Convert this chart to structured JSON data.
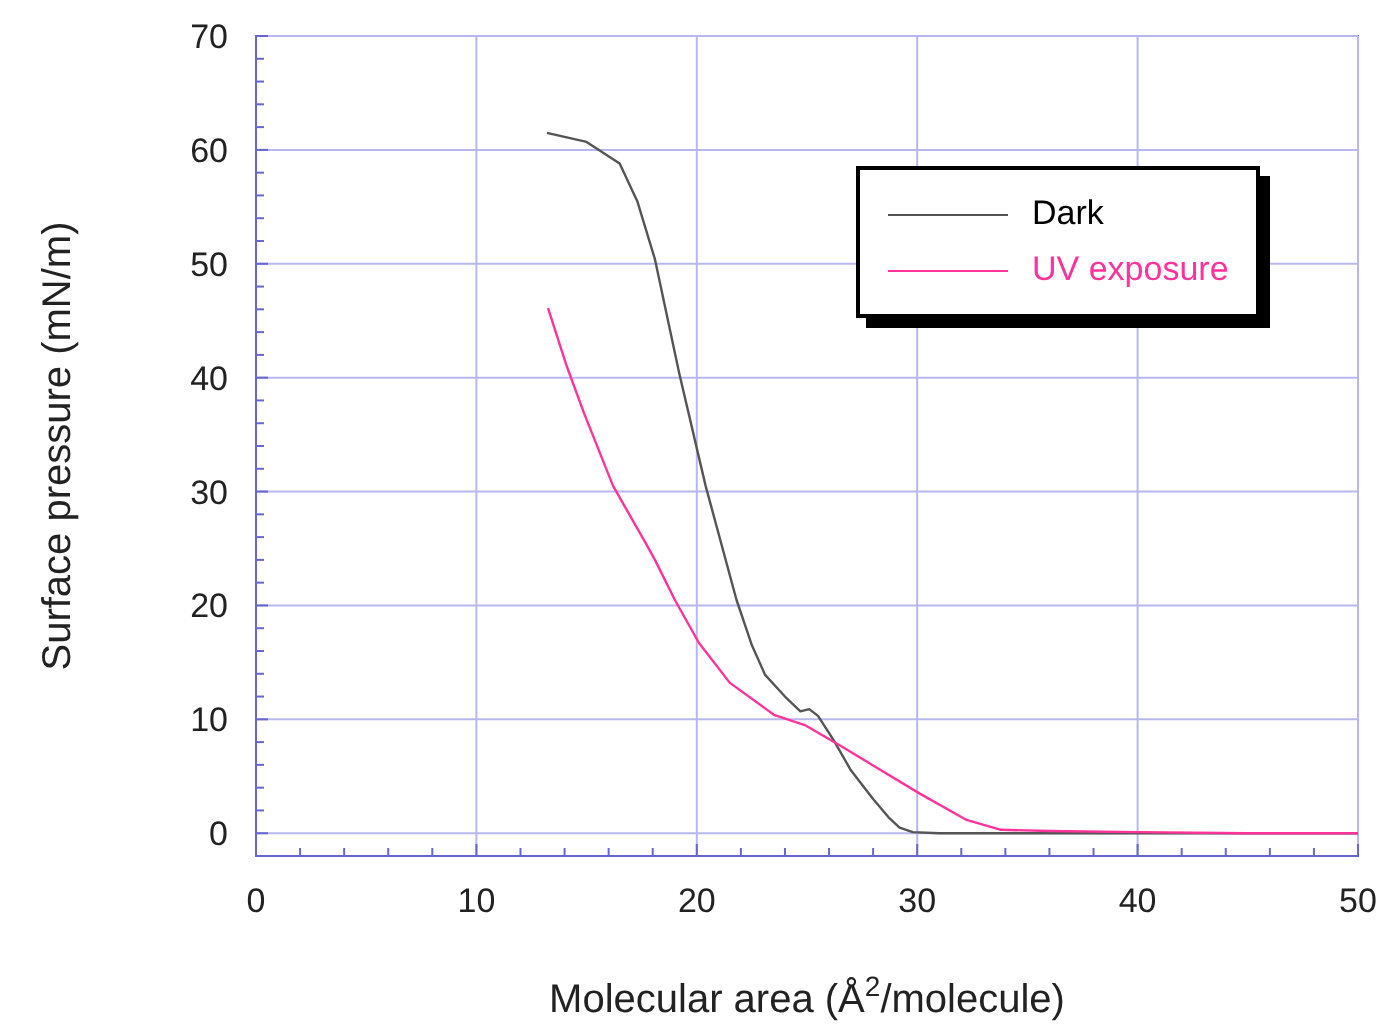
{
  "chart_data": {
    "type": "line",
    "xlabel": "Molecular area (Å$^{2}$/molecule)",
    "ylabel": "Surface pressure (mN/m)",
    "xlim": [
      0,
      50
    ],
    "ylim": [
      -2,
      70
    ],
    "xticks": [
      0,
      {
        "value": 2,
        "label": null
      },
      {
        "value": 4,
        "label": null
      },
      {
        "value": 6,
        "label": null
      },
      {
        "value": 8,
        "label": null
      },
      10,
      {
        "value": 12,
        "label": null
      },
      {
        "value": 14,
        "label": null
      },
      {
        "value": 16,
        "label": null
      },
      {
        "value": 18,
        "label": null
      },
      20,
      {
        "value": 22,
        "label": null
      },
      {
        "value": 24,
        "label": null
      },
      {
        "value": 26,
        "label": null
      },
      {
        "value": 28,
        "label": null
      },
      30,
      {
        "value": 32,
        "label": null
      },
      {
        "value": 34,
        "label": null
      },
      {
        "value": 36,
        "label": null
      },
      {
        "value": 38,
        "label": null
      },
      40,
      {
        "value": 42,
        "label": null
      },
      {
        "value": 44,
        "label": null
      },
      {
        "value": 46,
        "label": null
      },
      {
        "value": 48,
        "label": null
      },
      50
    ],
    "yticks": [
      0,
      {
        "value": 2,
        "label": null
      },
      {
        "value": 4,
        "label": null
      },
      {
        "value": 6,
        "label": null
      },
      {
        "value": 8,
        "label": null
      },
      10,
      {
        "value": 12,
        "label": null
      },
      {
        "value": 14,
        "label": null
      },
      {
        "value": 16,
        "label": null
      },
      {
        "value": 18,
        "label": null
      },
      20,
      {
        "value": 22,
        "label": null
      },
      {
        "value": 24,
        "label": null
      },
      {
        "value": 26,
        "label": null
      },
      {
        "value": 28,
        "label": null
      },
      30,
      {
        "value": 32,
        "label": null
      },
      {
        "value": 34,
        "label": null
      },
      {
        "value": 36,
        "label": null
      },
      {
        "value": 38,
        "label": null
      },
      40,
      {
        "value": 42,
        "label": null
      },
      {
        "value": 44,
        "label": null
      },
      {
        "value": 46,
        "label": null
      },
      {
        "value": 48,
        "label": null
      },
      50,
      {
        "value": 52,
        "label": null
      },
      {
        "value": 54,
        "label": null
      },
      {
        "value": 56,
        "label": null
      },
      {
        "value": 58,
        "label": null
      },
      60,
      {
        "value": 62,
        "label": null
      },
      {
        "value": 64,
        "label": null
      },
      {
        "value": 66,
        "label": null
      },
      {
        "value": 68,
        "label": null
      },
      70
    ],
    "grid": true,
    "legend": "top right",
    "marker": "none",
    "line_style": "solid",
    "series": [
      {
        "name": "Dark",
        "color": "#555555",
        "x": [
          13.2,
          15,
          16.5,
          17.3,
          18.1,
          19.2,
          20.4,
          21.8,
          22.5,
          23.1,
          24,
          24.7,
          25.1,
          25.5,
          26.2,
          27,
          28,
          28.7,
          29.2,
          29.8,
          31,
          35,
          40,
          45,
          50
        ],
        "values": [
          61.5,
          60.7,
          58.8,
          55.5,
          50.4,
          40.4,
          30.5,
          20.5,
          16.5,
          13.9,
          12,
          10.7,
          10.9,
          10.3,
          8.2,
          5.5,
          3,
          1.4,
          0.5,
          0.1,
          0,
          0,
          0,
          0,
          0
        ]
      },
      {
        "name": "UV exposure",
        "color": "#ff3399",
        "x": [
          13.25,
          14.1,
          14.9,
          16.2,
          17.7,
          18.1,
          19,
          20.1,
          21.5,
          23.5,
          24.9,
          26.5,
          28.3,
          30.1,
          32.2,
          33.8,
          36,
          40,
          45,
          50
        ],
        "values": [
          46.1,
          41,
          36.8,
          30.5,
          25.4,
          24,
          20.5,
          16.7,
          13.2,
          10.4,
          9.5,
          7.7,
          5.6,
          3.5,
          1.2,
          0.3,
          0.2,
          0.1,
          0,
          0
        ]
      }
    ]
  }
}
